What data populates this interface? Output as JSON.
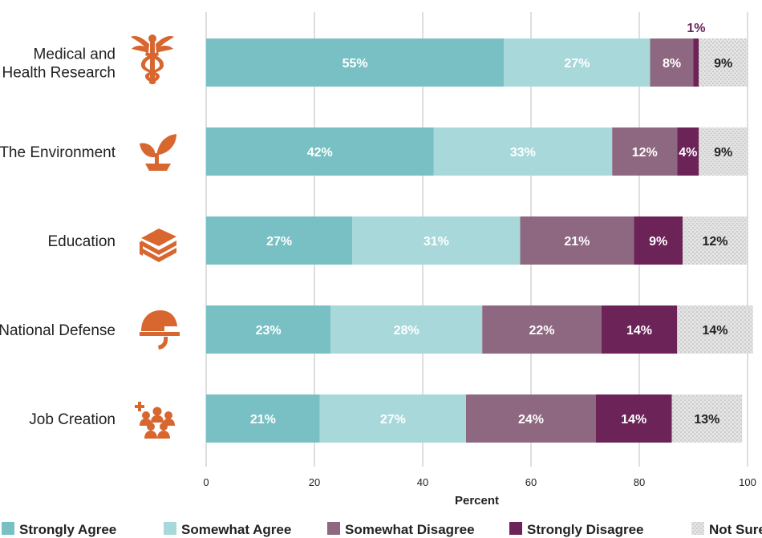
{
  "chart_data": {
    "type": "bar",
    "orientation": "horizontal",
    "stacked": true,
    "xlabel": "Percent",
    "xlim": [
      0,
      100
    ],
    "xticks": [
      0,
      20,
      40,
      60,
      80,
      100
    ],
    "grid": true,
    "legend_position": "bottom",
    "categories": [
      "Medical and Health Research",
      "The Environment",
      "Education",
      "National Defense",
      "Job Creation"
    ],
    "category_lines": [
      [
        "Medical and",
        "Health Research"
      ],
      [
        "The Environment"
      ],
      [
        "Education"
      ],
      [
        "National Defense"
      ],
      [
        "Job Creation"
      ]
    ],
    "category_icons": [
      "caduceus-icon",
      "plant-sprout-icon",
      "books-icon",
      "military-helmet-icon",
      "people-group-plus-icon"
    ],
    "series": [
      {
        "name": "Strongly Agree",
        "color": "#79c0c4",
        "label_color": "#ffffff",
        "values": [
          55,
          42,
          27,
          23,
          21
        ]
      },
      {
        "name": "Somewhat Agree",
        "color": "#a8d8da",
        "label_color": "#ffffff",
        "values": [
          27,
          33,
          31,
          28,
          27
        ]
      },
      {
        "name": "Somewhat Disagree",
        "color": "#8e6880",
        "label_color": "#ffffff",
        "values": [
          8,
          12,
          21,
          22,
          24
        ]
      },
      {
        "name": "Strongly Disagree",
        "color": "#6b2358",
        "label_color": "#ffffff",
        "values": [
          1,
          4,
          9,
          14,
          14
        ]
      },
      {
        "name": "Not Sure",
        "color": "#dcdcdc",
        "label_color": "#222222",
        "pattern": "dots",
        "values": [
          9,
          9,
          12,
          14,
          13
        ]
      }
    ],
    "value_labels": [
      [
        "55%",
        "27%",
        "8%",
        "1%",
        "9%"
      ],
      [
        "42%",
        "33%",
        "12%",
        "4%",
        "9%"
      ],
      [
        "27%",
        "31%",
        "21%",
        "9%",
        "12%"
      ],
      [
        "23%",
        "28%",
        "22%",
        "14%",
        "14%"
      ],
      [
        "21%",
        "27%",
        "24%",
        "14%",
        "13%"
      ]
    ],
    "callouts": [
      {
        "category_index": 0,
        "series_index": 3,
        "color": "#6b2358"
      }
    ]
  }
}
